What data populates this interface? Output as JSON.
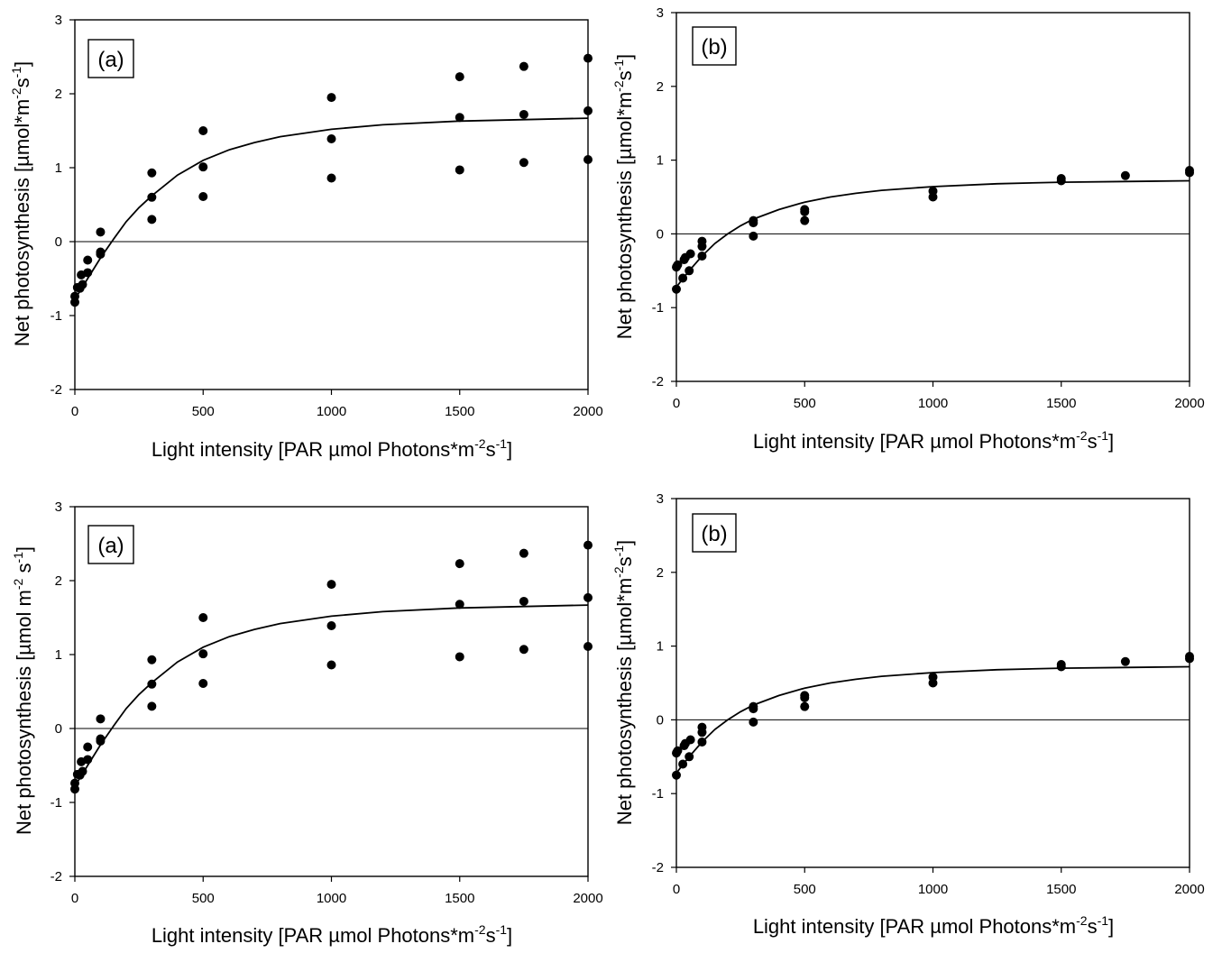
{
  "chart_data": [
    {
      "type": "scatter",
      "panel_label": "(a)",
      "xlabel": "Light intensity [PAR µmol Photons*m-2s-1]",
      "xlabel_parts": [
        [
          "Light intensity [PAR µmol Photons*m",
          "n"
        ],
        [
          "-2",
          "s"
        ],
        [
          "s",
          "n"
        ],
        [
          "-1",
          "s"
        ],
        [
          "]",
          "n"
        ]
      ],
      "ylabel": "Net photosynthesis [µmol*m-2s-1]",
      "ylabel_parts": [
        [
          "Net photosynthesis [µmol*m",
          "n"
        ],
        [
          "-2",
          "s"
        ],
        [
          "s",
          "n"
        ],
        [
          "-1",
          "s"
        ],
        [
          "]",
          "n"
        ]
      ],
      "xlim": [
        0,
        2000
      ],
      "ylim": [
        -2,
        3
      ],
      "xticks": [
        "0",
        "500",
        "1000",
        "1500",
        "2000"
      ],
      "yticks": [
        "-2",
        "-1",
        "0",
        "1",
        "2",
        "3"
      ],
      "reference_line": 0,
      "points": [
        [
          0,
          -0.82
        ],
        [
          0,
          -0.74
        ],
        [
          10,
          -0.62
        ],
        [
          20,
          -0.63
        ],
        [
          25,
          -0.45
        ],
        [
          30,
          -0.58
        ],
        [
          50,
          -0.42
        ],
        [
          50,
          -0.25
        ],
        [
          100,
          -0.17
        ],
        [
          100,
          -0.14
        ],
        [
          100,
          0.13
        ],
        [
          300,
          0.3
        ],
        [
          300,
          0.6
        ],
        [
          300,
          0.93
        ],
        [
          500,
          0.61
        ],
        [
          500,
          1.01
        ],
        [
          500,
          1.5
        ],
        [
          1000,
          0.86
        ],
        [
          1000,
          1.39
        ],
        [
          1000,
          1.95
        ],
        [
          1500,
          0.97
        ],
        [
          1500,
          1.68
        ],
        [
          1500,
          2.23
        ],
        [
          1750,
          1.07
        ],
        [
          1750,
          1.72
        ],
        [
          1750,
          2.37
        ],
        [
          2000,
          1.11
        ],
        [
          2000,
          1.77
        ],
        [
          2000,
          2.48
        ]
      ],
      "fit_curve": [
        [
          0,
          -0.78
        ],
        [
          50,
          -0.5
        ],
        [
          100,
          -0.22
        ],
        [
          150,
          0.03
        ],
        [
          200,
          0.27
        ],
        [
          250,
          0.46
        ],
        [
          300,
          0.62
        ],
        [
          400,
          0.9
        ],
        [
          500,
          1.1
        ],
        [
          600,
          1.24
        ],
        [
          700,
          1.34
        ],
        [
          800,
          1.42
        ],
        [
          1000,
          1.52
        ],
        [
          1200,
          1.58
        ],
        [
          1500,
          1.63
        ],
        [
          1750,
          1.65
        ],
        [
          2000,
          1.67
        ]
      ]
    },
    {
      "type": "scatter",
      "panel_label": "(b)",
      "xlabel": "Light intensity [PAR µmol Photons*m-2s-1]",
      "xlabel_parts": [
        [
          "Light intensity [PAR µmol Photons*m",
          "n"
        ],
        [
          "-2",
          "s"
        ],
        [
          "s",
          "n"
        ],
        [
          "-1",
          "s"
        ],
        [
          "]",
          "n"
        ]
      ],
      "ylabel": "Net photosynthesis [µmol*m-2s-1]",
      "ylabel_parts": [
        [
          "Net photosynthesis [µmol*m",
          "n"
        ],
        [
          "-2",
          "s"
        ],
        [
          "s",
          "n"
        ],
        [
          "-1",
          "s"
        ],
        [
          "]",
          "n"
        ]
      ],
      "xlim": [
        0,
        2000
      ],
      "ylim": [
        -2,
        3
      ],
      "xticks": [
        "0",
        "500",
        "1000",
        "1500",
        "2000"
      ],
      "yticks": [
        "-2",
        "-1",
        "0",
        "1",
        "2",
        "3"
      ],
      "reference_line": 0,
      "points": [
        [
          0,
          -0.75
        ],
        [
          0,
          -0.45
        ],
        [
          5,
          -0.42
        ],
        [
          25,
          -0.6
        ],
        [
          30,
          -0.35
        ],
        [
          35,
          -0.32
        ],
        [
          50,
          -0.5
        ],
        [
          55,
          -0.27
        ],
        [
          100,
          -0.3
        ],
        [
          100,
          -0.17
        ],
        [
          100,
          -0.1
        ],
        [
          300,
          -0.03
        ],
        [
          300,
          0.15
        ],
        [
          300,
          0.18
        ],
        [
          500,
          0.18
        ],
        [
          500,
          0.3
        ],
        [
          500,
          0.33
        ],
        [
          1000,
          0.5
        ],
        [
          1000,
          0.58
        ],
        [
          1500,
          0.72
        ],
        [
          1500,
          0.75
        ],
        [
          1750,
          0.79
        ],
        [
          2000,
          0.83
        ],
        [
          2000,
          0.86
        ]
      ],
      "fit_curve": [
        [
          0,
          -0.72
        ],
        [
          50,
          -0.5
        ],
        [
          100,
          -0.3
        ],
        [
          150,
          -0.13
        ],
        [
          200,
          0.0
        ],
        [
          250,
          0.11
        ],
        [
          300,
          0.2
        ],
        [
          400,
          0.33
        ],
        [
          500,
          0.43
        ],
        [
          600,
          0.5
        ],
        [
          700,
          0.55
        ],
        [
          800,
          0.59
        ],
        [
          1000,
          0.64
        ],
        [
          1250,
          0.68
        ],
        [
          1500,
          0.7
        ],
        [
          1750,
          0.71
        ],
        [
          2000,
          0.72
        ]
      ]
    },
    {
      "type": "scatter",
      "panel_label": "(a)",
      "xlabel": "Light intensity [PAR µmol Photons*m-2s-1]",
      "xlabel_parts": [
        [
          "Light intensity [PAR µmol Photons*m",
          "n"
        ],
        [
          "-2",
          "s"
        ],
        [
          "s",
          "n"
        ],
        [
          "-1",
          "s"
        ],
        [
          "]",
          "n"
        ]
      ],
      "ylabel": "Net photosynthesis [µmol m-2 s-1]",
      "ylabel_parts": [
        [
          "Net photosynthesis [µmol  m",
          "n"
        ],
        [
          "-2",
          "s"
        ],
        [
          " s",
          "n"
        ],
        [
          "-1",
          "s"
        ],
        [
          "]",
          "n"
        ]
      ],
      "xlim": [
        0,
        2000
      ],
      "ylim": [
        -2,
        3
      ],
      "xticks": [
        "0",
        "500",
        "1000",
        "1500",
        "2000"
      ],
      "yticks": [
        "-2",
        "-1",
        "0",
        "1",
        "2",
        "3"
      ],
      "reference_line": 0,
      "points": [
        [
          0,
          -0.82
        ],
        [
          0,
          -0.74
        ],
        [
          10,
          -0.62
        ],
        [
          20,
          -0.63
        ],
        [
          25,
          -0.45
        ],
        [
          30,
          -0.58
        ],
        [
          50,
          -0.42
        ],
        [
          50,
          -0.25
        ],
        [
          100,
          -0.17
        ],
        [
          100,
          -0.14
        ],
        [
          100,
          0.13
        ],
        [
          300,
          0.3
        ],
        [
          300,
          0.6
        ],
        [
          300,
          0.93
        ],
        [
          500,
          0.61
        ],
        [
          500,
          1.01
        ],
        [
          500,
          1.5
        ],
        [
          1000,
          0.86
        ],
        [
          1000,
          1.39
        ],
        [
          1000,
          1.95
        ],
        [
          1500,
          0.97
        ],
        [
          1500,
          1.68
        ],
        [
          1500,
          2.23
        ],
        [
          1750,
          1.07
        ],
        [
          1750,
          1.72
        ],
        [
          1750,
          2.37
        ],
        [
          2000,
          1.11
        ],
        [
          2000,
          1.77
        ],
        [
          2000,
          2.48
        ]
      ],
      "fit_curve": [
        [
          0,
          -0.78
        ],
        [
          50,
          -0.5
        ],
        [
          100,
          -0.22
        ],
        [
          150,
          0.03
        ],
        [
          200,
          0.27
        ],
        [
          250,
          0.46
        ],
        [
          300,
          0.62
        ],
        [
          400,
          0.9
        ],
        [
          500,
          1.1
        ],
        [
          600,
          1.24
        ],
        [
          700,
          1.34
        ],
        [
          800,
          1.42
        ],
        [
          1000,
          1.52
        ],
        [
          1200,
          1.58
        ],
        [
          1500,
          1.63
        ],
        [
          1750,
          1.65
        ],
        [
          2000,
          1.67
        ]
      ]
    },
    {
      "type": "scatter",
      "panel_label": "(b)",
      "xlabel": "Light intensity [PAR µmol Photons*m-2s-1]",
      "xlabel_parts": [
        [
          "Light intensity [PAR µmol Photons*m",
          "n"
        ],
        [
          "-2",
          "s"
        ],
        [
          "s",
          "n"
        ],
        [
          "-1",
          "s"
        ],
        [
          "]",
          "n"
        ]
      ],
      "ylabel": "Net photosynthesis [µmol*m-2s-1]",
      "ylabel_parts": [
        [
          "Net photosynthesis [µmol*m",
          "n"
        ],
        [
          "-2",
          "s"
        ],
        [
          "s",
          "n"
        ],
        [
          "-1",
          "s"
        ],
        [
          "]",
          "n"
        ]
      ],
      "xlim": [
        0,
        2000
      ],
      "ylim": [
        -2,
        3
      ],
      "xticks": [
        "0",
        "500",
        "1000",
        "1500",
        "2000"
      ],
      "yticks": [
        "-2",
        "-1",
        "0",
        "1",
        "2",
        "3"
      ],
      "reference_line": 0,
      "points": [
        [
          0,
          -0.75
        ],
        [
          0,
          -0.45
        ],
        [
          5,
          -0.42
        ],
        [
          25,
          -0.6
        ],
        [
          30,
          -0.35
        ],
        [
          35,
          -0.32
        ],
        [
          50,
          -0.5
        ],
        [
          55,
          -0.27
        ],
        [
          100,
          -0.3
        ],
        [
          100,
          -0.17
        ],
        [
          100,
          -0.1
        ],
        [
          300,
          -0.03
        ],
        [
          300,
          0.15
        ],
        [
          300,
          0.18
        ],
        [
          500,
          0.18
        ],
        [
          500,
          0.3
        ],
        [
          500,
          0.33
        ],
        [
          1000,
          0.5
        ],
        [
          1000,
          0.58
        ],
        [
          1500,
          0.72
        ],
        [
          1500,
          0.75
        ],
        [
          1750,
          0.79
        ],
        [
          2000,
          0.83
        ],
        [
          2000,
          0.86
        ]
      ],
      "fit_curve": [
        [
          0,
          -0.72
        ],
        [
          50,
          -0.5
        ],
        [
          100,
          -0.3
        ],
        [
          150,
          -0.13
        ],
        [
          200,
          0.0
        ],
        [
          250,
          0.11
        ],
        [
          300,
          0.2
        ],
        [
          400,
          0.33
        ],
        [
          500,
          0.43
        ],
        [
          600,
          0.5
        ],
        [
          700,
          0.55
        ],
        [
          800,
          0.59
        ],
        [
          1000,
          0.64
        ],
        [
          1250,
          0.68
        ],
        [
          1500,
          0.7
        ],
        [
          1750,
          0.71
        ],
        [
          2000,
          0.72
        ]
      ]
    }
  ]
}
